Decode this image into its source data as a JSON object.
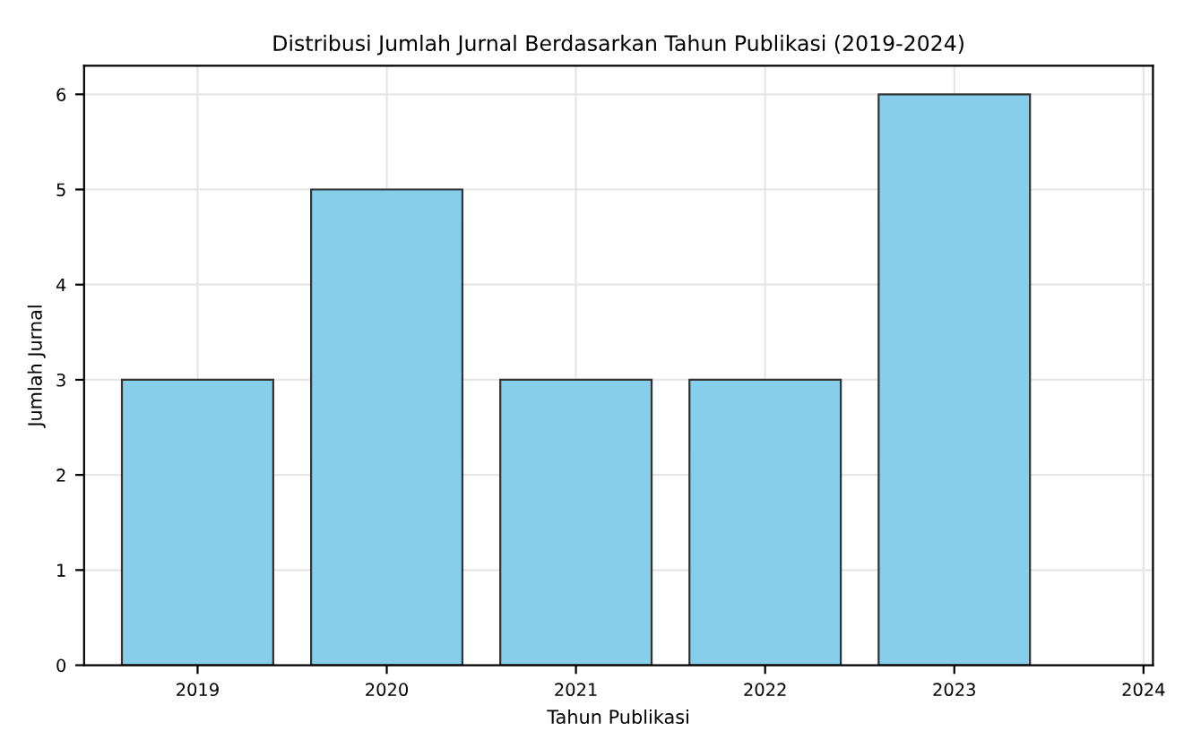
{
  "chart_data": {
    "type": "bar",
    "title": "Distribusi Jumlah Jurnal Berdasarkan Tahun Publikasi (2019-2024)",
    "xlabel": "Tahun Publikasi",
    "ylabel": "Jumlah Jurnal",
    "x": [
      2019,
      2020,
      2021,
      2022,
      2023
    ],
    "values": [
      3,
      5,
      3,
      3,
      6
    ],
    "color": "#87ceeb",
    "xlim": [
      2018.4,
      2024.05
    ],
    "xticks": [
      2019,
      2020,
      2021,
      2022,
      2023,
      2024
    ],
    "ylim": [
      0,
      6.3
    ],
    "yticks": [
      0,
      1,
      2,
      3,
      4,
      5,
      6
    ],
    "grid": true
  }
}
